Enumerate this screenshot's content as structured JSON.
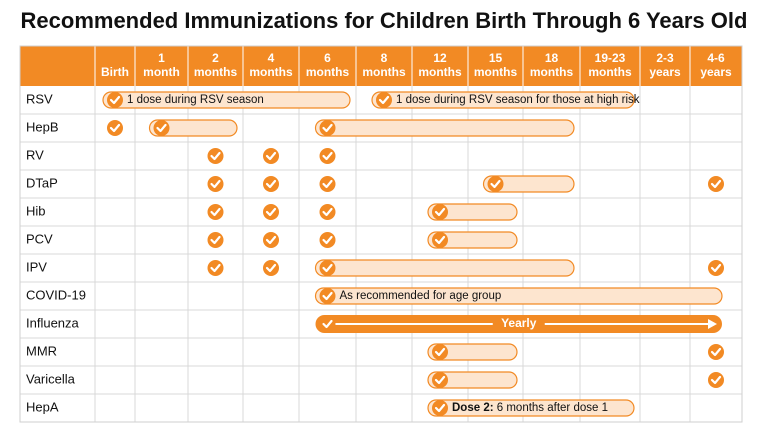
{
  "header": {
    "title": "Recommended Immunizations for Children Birth Through 6 Years Old"
  },
  "table": {
    "columns": [
      [
        "Birth"
      ],
      [
        "1",
        "month"
      ],
      [
        "2",
        "months"
      ],
      [
        "4",
        "months"
      ],
      [
        "6",
        "months"
      ],
      [
        "8",
        "months"
      ],
      [
        "12",
        "months"
      ],
      [
        "15",
        "months"
      ],
      [
        "18",
        "months"
      ],
      [
        "19-23",
        "months"
      ],
      [
        "2-3",
        "years"
      ],
      [
        "4-6",
        "years"
      ]
    ],
    "rows": [
      {
        "name": "RSV",
        "checks": [],
        "bars": [
          {
            "from": 0,
            "to": 4,
            "label": "1 dose during RSV season"
          },
          {
            "from": 5,
            "to": 9,
            "label": "1 dose during RSV season for those at high risk"
          }
        ]
      },
      {
        "name": "HepB",
        "checks": [
          0
        ],
        "bars": [
          {
            "from": 1,
            "to": 2
          },
          {
            "from": 4,
            "to": 8
          }
        ]
      },
      {
        "name": "RV",
        "checks": [
          2,
          3,
          4
        ],
        "bars": []
      },
      {
        "name": "DTaP",
        "checks": [
          2,
          3,
          4,
          11
        ],
        "bars": [
          {
            "from": 7,
            "to": 8
          }
        ]
      },
      {
        "name": "Hib",
        "checks": [
          2,
          3,
          4
        ],
        "bars": [
          {
            "from": 6,
            "to": 7
          }
        ]
      },
      {
        "name": "PCV",
        "checks": [
          2,
          3,
          4
        ],
        "bars": [
          {
            "from": 6,
            "to": 7
          }
        ]
      },
      {
        "name": "IPV",
        "checks": [
          2,
          3,
          11
        ],
        "bars": [
          {
            "from": 4,
            "to": 8
          }
        ]
      },
      {
        "name": "COVID-19",
        "checks": [],
        "bars": [
          {
            "from": 4,
            "to": 11,
            "label": "As recommended for age group"
          }
        ]
      },
      {
        "name": "Influenza",
        "checks": [],
        "bars": [
          {
            "from": 4,
            "to": 11,
            "label": "Yearly",
            "arrow": true
          }
        ]
      },
      {
        "name": "MMR",
        "checks": [
          11
        ],
        "bars": [
          {
            "from": 6,
            "to": 7
          }
        ]
      },
      {
        "name": "Varicella",
        "checks": [
          11
        ],
        "bars": [
          {
            "from": 6,
            "to": 7
          }
        ]
      },
      {
        "name": "HepA",
        "checks": [],
        "bars": [
          {
            "from": 6,
            "to": 9,
            "label_bold": "Dose 2:",
            "label": "6 months after dose 1"
          }
        ]
      }
    ]
  }
}
